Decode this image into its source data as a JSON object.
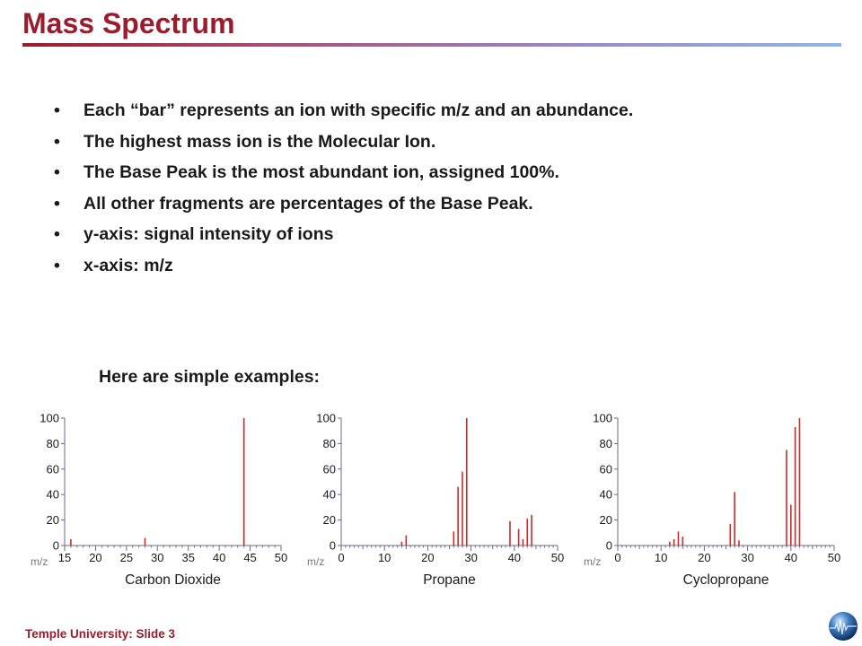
{
  "slide": {
    "title": "Mass Spectrum",
    "bullets": [
      "Each “bar” represents an ion with specific m/z and an abundance.",
      "The highest mass ion is the Molecular Ion.",
      "The Base Peak is the most abundant ion, assigned 100%.",
      "All other fragments are percentages of the Base Peak.",
      "y-axis: signal intensity of ions",
      "x-axis: m/z"
    ],
    "bullet_symbol": "•",
    "subtitle": "Here are simple examples:",
    "footer": "Temple University:  Slide 3"
  },
  "colors": {
    "title": "#9b1c2c",
    "bar": "#cc2a2a",
    "axis": "#6a6a8a",
    "text": "#1a1a1a"
  },
  "chart_data": [
    {
      "type": "bar",
      "title": "Carbon Dioxide",
      "xlabel": "m/z",
      "xlim": [
        15,
        50
      ],
      "ylim": [
        0,
        100
      ],
      "xticks": [
        15,
        20,
        25,
        30,
        35,
        40,
        45,
        50
      ],
      "yticks": [
        0,
        20,
        40,
        60,
        80,
        100
      ],
      "peaks": [
        {
          "mz": 16,
          "intensity": 5
        },
        {
          "mz": 28,
          "intensity": 6
        },
        {
          "mz": 44,
          "intensity": 100
        }
      ]
    },
    {
      "type": "bar",
      "title": "Propane",
      "xlabel": "m/z",
      "xlim": [
        0,
        50
      ],
      "ylim": [
        0,
        100
      ],
      "xticks": [
        0,
        10,
        20,
        30,
        40,
        50
      ],
      "yticks": [
        0,
        20,
        40,
        60,
        80,
        100
      ],
      "peaks": [
        {
          "mz": 14,
          "intensity": 3
        },
        {
          "mz": 15,
          "intensity": 8
        },
        {
          "mz": 26,
          "intensity": 11
        },
        {
          "mz": 27,
          "intensity": 46
        },
        {
          "mz": 28,
          "intensity": 58
        },
        {
          "mz": 29,
          "intensity": 100
        },
        {
          "mz": 39,
          "intensity": 19
        },
        {
          "mz": 41,
          "intensity": 13
        },
        {
          "mz": 42,
          "intensity": 5
        },
        {
          "mz": 43,
          "intensity": 21
        },
        {
          "mz": 44,
          "intensity": 24
        }
      ]
    },
    {
      "type": "bar",
      "title": "Cyclopropane",
      "xlabel": "m/z",
      "xlim": [
        0,
        50
      ],
      "ylim": [
        0,
        100
      ],
      "xticks": [
        0,
        10,
        20,
        30,
        40,
        50
      ],
      "yticks": [
        0,
        20,
        40,
        60,
        80,
        100
      ],
      "peaks": [
        {
          "mz": 12,
          "intensity": 3
        },
        {
          "mz": 13,
          "intensity": 5
        },
        {
          "mz": 14,
          "intensity": 11
        },
        {
          "mz": 15,
          "intensity": 7
        },
        {
          "mz": 26,
          "intensity": 17
        },
        {
          "mz": 27,
          "intensity": 42
        },
        {
          "mz": 28,
          "intensity": 4
        },
        {
          "mz": 39,
          "intensity": 75
        },
        {
          "mz": 40,
          "intensity": 32
        },
        {
          "mz": 41,
          "intensity": 93
        },
        {
          "mz": 42,
          "intensity": 100
        }
      ]
    }
  ]
}
